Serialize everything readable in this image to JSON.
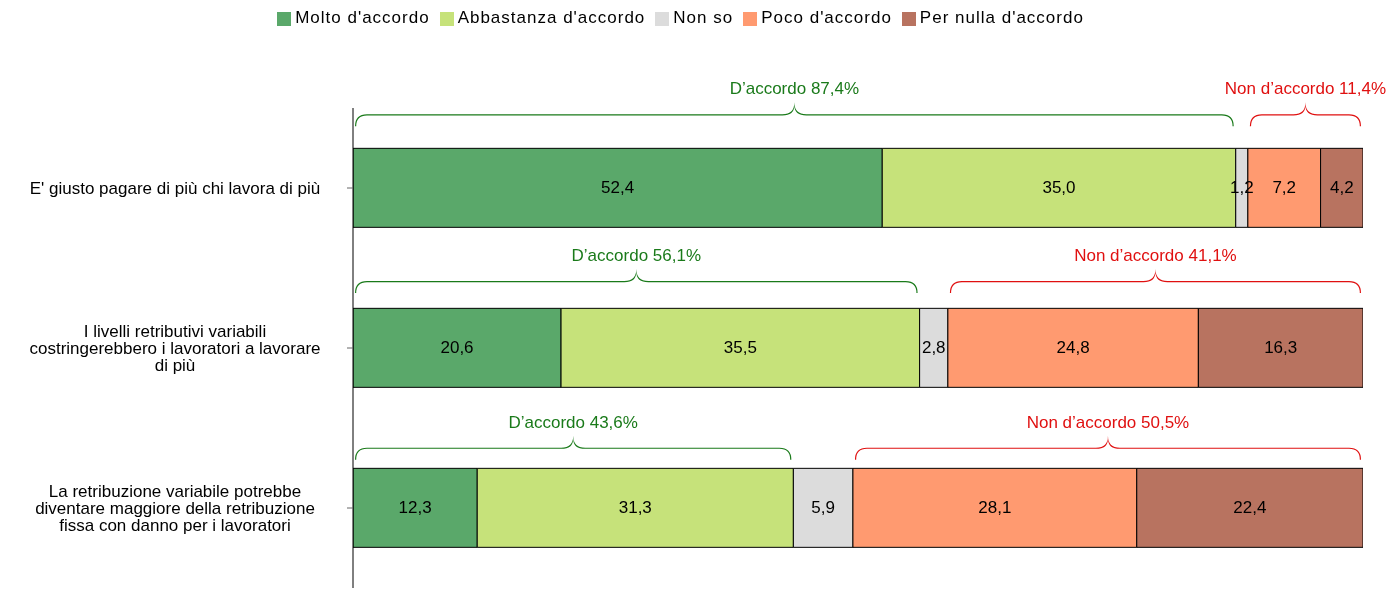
{
  "chart_data": {
    "type": "bar",
    "orientation": "horizontal",
    "stacked": true,
    "legend": "top",
    "tick_labels": "y",
    "xlim": [
      0,
      100
    ],
    "categories": [
      "E' giusto pagare di più chi lavora di più",
      "I livelli retributivi variabili costringerebbero i lavoratori a lavorare di più",
      "La retribuzione variabile potrebbe diventare maggiore della retribuzione fissa con danno per i lavoratori"
    ],
    "series": [
      {
        "name": "Molto d'accordo",
        "color": "#5aa86a",
        "values": [
          52.4,
          20.6,
          12.3
        ],
        "value_labels": [
          "52,4",
          "20,6",
          "12,3"
        ]
      },
      {
        "name": "Abbastanza d'accordo",
        "color": "#c6e27a",
        "values": [
          35.0,
          35.5,
          31.3
        ],
        "value_labels": [
          "35,0",
          "35,5",
          "31,3"
        ]
      },
      {
        "name": "Non so",
        "color": "#dcdcdc",
        "values": [
          1.2,
          2.8,
          5.9
        ],
        "value_labels": [
          "1,2",
          "2,8",
          "5,9"
        ]
      },
      {
        "name": "Poco d'accordo",
        "color": "#ff9a70",
        "values": [
          7.2,
          24.8,
          28.1
        ],
        "value_labels": [
          "7,2",
          "24,8",
          "28,1"
        ]
      },
      {
        "name": "Per nulla d'accordo",
        "color": "#b87360",
        "values": [
          4.2,
          16.3,
          22.4
        ],
        "value_labels": [
          "4,2",
          "16,3",
          "22,4"
        ]
      }
    ],
    "annotations": [
      "D’accordo 87,4%",
      "Non d’accordo 11,4%",
      "D’accordo 56,1%",
      "Non d’accordo 41,1%",
      "D’accordo 43,6%",
      "Non d’accordo 50,5%"
    ]
  }
}
